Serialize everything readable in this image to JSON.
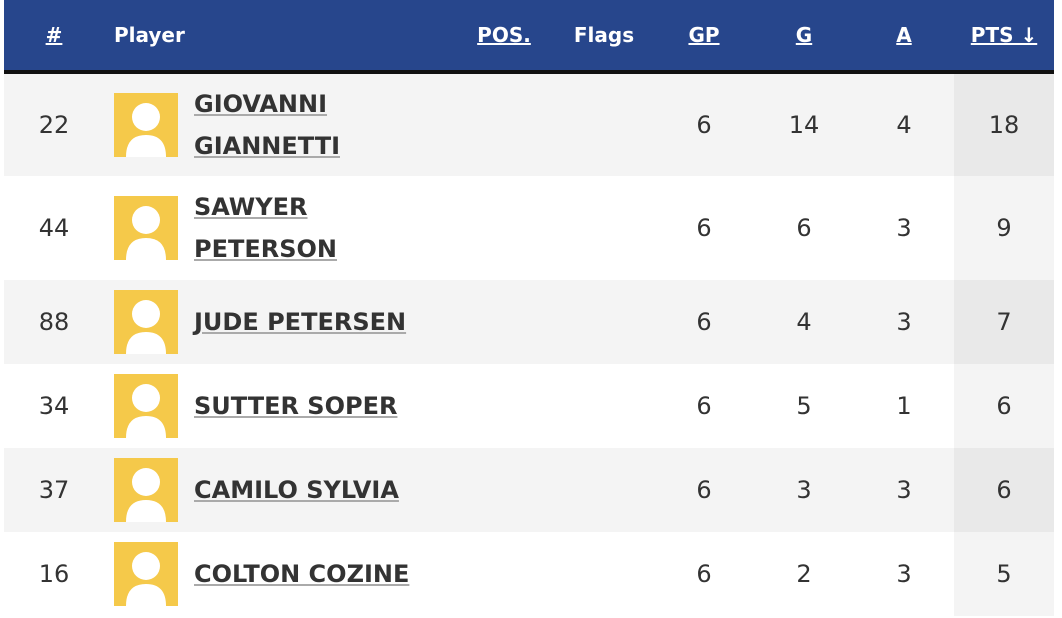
{
  "header": {
    "columns": [
      "#",
      "Player",
      "POS.",
      "Flags",
      "GP",
      "G",
      "A",
      "PTS ↓"
    ]
  },
  "table": {
    "rows": [
      {
        "number": "22",
        "name": "GIOVANNI GIANNETTI",
        "gp": "6",
        "g": "14",
        "a": "4",
        "pts": "18"
      },
      {
        "number": "44",
        "name": "SAWYER PETERSON",
        "gp": "6",
        "g": "6",
        "a": "3",
        "pts": "9"
      },
      {
        "number": "88",
        "name": "JUDE PETERSEN",
        "gp": "6",
        "g": "4",
        "a": "3",
        "pts": "7"
      },
      {
        "number": "34",
        "name": "SUTTER SOPER",
        "gp": "6",
        "g": "5",
        "a": "1",
        "pts": "6"
      },
      {
        "number": "37",
        "name": "CAMILO SYLVIA",
        "gp": "6",
        "g": "3",
        "a": "3",
        "pts": "6"
      },
      {
        "number": "16",
        "name": "COLTON COZINE",
        "gp": "6",
        "g": "2",
        "a": "3",
        "pts": "5"
      }
    ]
  }
}
